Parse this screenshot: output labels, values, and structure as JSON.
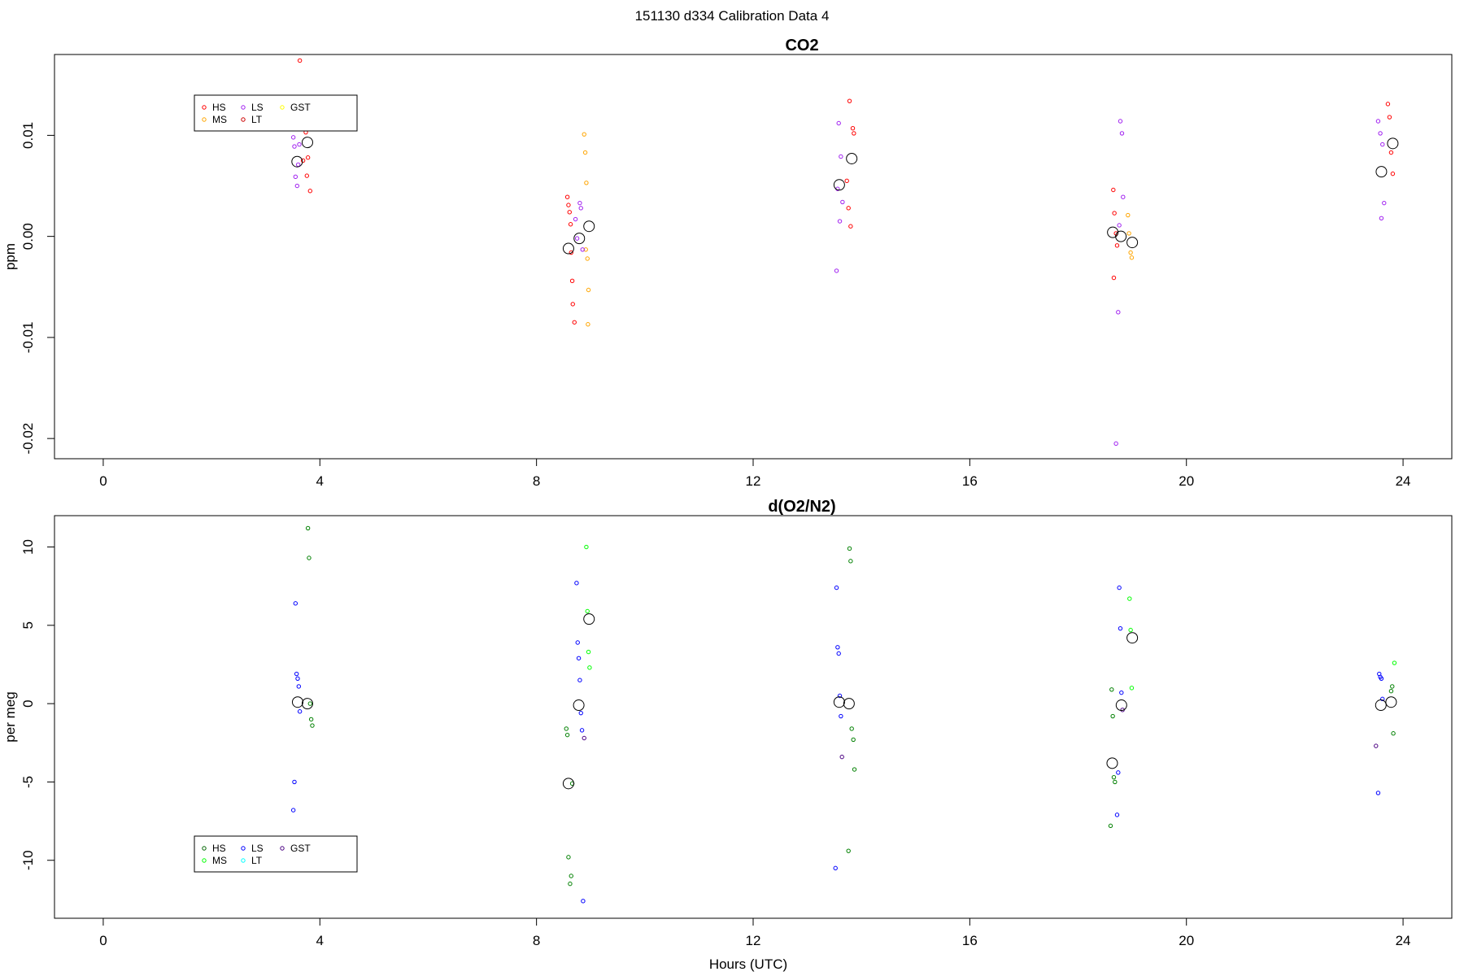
{
  "page": {
    "title": "151130   d334   Calibration Data 4"
  },
  "chart_data": [
    {
      "type": "scatter",
      "title": "CO2",
      "xlabel": "",
      "ylabel": "ppm",
      "xlim": [
        -0.9,
        24.9
      ],
      "ylim": [
        -0.022,
        0.018
      ],
      "xticks": [
        0,
        4,
        8,
        12,
        16,
        20,
        24
      ],
      "yticks": [
        -0.02,
        -0.01,
        0.0,
        0.01
      ],
      "ytick_labels": [
        "-0.02",
        "-0.01",
        "0.00",
        "0.01"
      ],
      "legend": {
        "position": "top-left",
        "entries": [
          {
            "label": "HS",
            "color": "#ff0000"
          },
          {
            "label": "MS",
            "color": "#ffa500"
          },
          {
            "label": "LS",
            "color": "#a020f0"
          },
          {
            "label": "LT",
            "color": "#cc0000"
          },
          {
            "label": "GST",
            "color": "#ffff00"
          }
        ]
      },
      "series": [
        {
          "name": "HS",
          "color": "#ff0000",
          "x": [
            3.63,
            3.74,
            3.78,
            3.82,
            3.69,
            3.76,
            8.57,
            8.59,
            8.61,
            8.63,
            8.64,
            8.66,
            8.67,
            8.7,
            13.78,
            13.84,
            13.86,
            13.73,
            13.76,
            13.8,
            18.65,
            18.67,
            18.7,
            18.66,
            18.72,
            23.72,
            23.75,
            23.78,
            23.81
          ],
          "y": [
            0.0174,
            0.0103,
            0.0078,
            0.0045,
            0.0075,
            0.006,
            0.0039,
            0.0031,
            0.0024,
            0.0012,
            -0.0016,
            -0.0044,
            -0.0067,
            -0.0085,
            0.0134,
            0.0107,
            0.0102,
            0.0055,
            0.0028,
            0.001,
            0.0046,
            0.0023,
            0.0003,
            -0.0041,
            -0.0009,
            0.0131,
            0.0118,
            0.0083,
            0.0062
          ]
        },
        {
          "name": "MS",
          "color": "#ffa500",
          "x": [
            8.88,
            8.9,
            8.92,
            8.91,
            8.94,
            8.96,
            8.95,
            18.92,
            18.94,
            18.97,
            18.99
          ],
          "y": [
            0.0101,
            0.0083,
            0.0053,
            -0.0013,
            -0.0022,
            -0.0053,
            -0.0087,
            0.0021,
            0.0003,
            -0.0016,
            -0.0021
          ]
        },
        {
          "name": "LS",
          "color": "#a020f0",
          "x": [
            3.51,
            3.53,
            3.55,
            3.58,
            3.6,
            3.62,
            8.8,
            8.82,
            8.72,
            8.75,
            8.85,
            13.54,
            13.58,
            13.62,
            13.65,
            13.56,
            13.6,
            18.78,
            18.81,
            18.83,
            18.76,
            18.74,
            18.7,
            23.54,
            23.58,
            23.62,
            23.65,
            23.6
          ],
          "y": [
            0.0098,
            0.0089,
            0.0059,
            0.005,
            0.0071,
            0.0091,
            0.0033,
            0.0028,
            0.0017,
            -0.0002,
            -0.0013,
            -0.0034,
            0.0112,
            0.0079,
            0.0034,
            0.0047,
            0.0015,
            0.0114,
            0.0102,
            0.0039,
            0.0011,
            -0.0075,
            -0.0205,
            0.0114,
            0.0102,
            0.0091,
            0.0033,
            0.0018
          ]
        }
      ],
      "means": {
        "x": [
          3.58,
          3.77,
          8.59,
          8.79,
          8.97,
          13.59,
          13.82,
          18.64,
          18.79,
          19.0,
          23.6,
          23.81
        ],
        "y": [
          0.0074,
          0.0093,
          -0.0012,
          -0.0002,
          0.001,
          0.0051,
          0.0077,
          0.0004,
          0.0,
          -0.0006,
          0.0064,
          0.0092
        ]
      }
    },
    {
      "type": "scatter",
      "title": "d(O2/N2)",
      "xlabel": "Hours (UTC)",
      "ylabel": "per meg",
      "xlim": [
        -0.9,
        24.9
      ],
      "ylim": [
        -13.7,
        12.0
      ],
      "xticks": [
        0,
        4,
        8,
        12,
        16,
        20,
        24
      ],
      "yticks": [
        -10,
        -5,
        0,
        5,
        10
      ],
      "ytick_labels": [
        "-10",
        "-5",
        "0",
        "5",
        "10"
      ],
      "legend": {
        "position": "bottom-left",
        "entries": [
          {
            "label": "HS",
            "color": "#006400"
          },
          {
            "label": "MS",
            "color": "#00ff00"
          },
          {
            "label": "LS",
            "color": "#0000ff"
          },
          {
            "label": "LT",
            "color": "#00ffff"
          },
          {
            "label": "GST",
            "color": "#4b0082"
          }
        ]
      },
      "series": [
        {
          "name": "HS",
          "color": "#008000",
          "x": [
            3.78,
            3.8,
            3.82,
            3.84,
            3.86,
            8.55,
            8.57,
            8.59,
            8.62,
            8.64,
            8.66,
            13.78,
            13.8,
            13.82,
            13.85,
            13.87,
            13.76,
            18.62,
            18.64,
            18.66,
            18.68,
            18.6,
            23.78,
            23.8,
            23.82
          ],
          "y": [
            11.2,
            9.3,
            0.0,
            -1.0,
            -1.4,
            -1.6,
            -2.0,
            -9.8,
            -11.5,
            -11.0,
            -5.1,
            9.9,
            9.1,
            -1.6,
            -2.3,
            -4.2,
            -9.4,
            0.9,
            -0.8,
            -4.7,
            -5.0,
            -7.8,
            0.8,
            1.1,
            -1.9
          ]
        },
        {
          "name": "MS",
          "color": "#00ff00",
          "x": [
            8.92,
            8.94,
            8.96,
            8.98,
            18.95,
            18.97,
            18.99,
            23.84
          ],
          "y": [
            10.0,
            5.9,
            3.3,
            2.3,
            6.7,
            4.7,
            1.0,
            2.6
          ]
        },
        {
          "name": "LS",
          "color": "#0000ff",
          "x": [
            3.55,
            3.57,
            3.59,
            3.61,
            3.63,
            3.53,
            3.51,
            8.74,
            8.76,
            8.78,
            8.8,
            8.82,
            8.84,
            8.86,
            13.54,
            13.56,
            13.58,
            13.6,
            13.62,
            13.52,
            18.76,
            18.78,
            18.8,
            18.74,
            18.72,
            23.56,
            23.58,
            23.6,
            23.62,
            23.54
          ],
          "y": [
            6.4,
            1.9,
            1.6,
            1.1,
            -0.5,
            -5.0,
            -6.8,
            7.7,
            3.9,
            2.9,
            1.5,
            -0.6,
            -1.7,
            -12.6,
            7.4,
            3.6,
            3.2,
            0.5,
            -0.8,
            -10.5,
            7.4,
            4.8,
            0.7,
            -4.4,
            -7.1,
            1.9,
            1.7,
            1.6,
            0.3,
            -5.7
          ]
        },
        {
          "name": "GST",
          "color": "#4b0082",
          "x": [
            8.88,
            13.64,
            18.82,
            23.5
          ],
          "y": [
            -2.2,
            -3.4,
            -0.4,
            -2.7
          ]
        }
      ],
      "means": {
        "x": [
          3.59,
          3.77,
          8.59,
          8.78,
          8.97,
          13.59,
          13.77,
          18.63,
          18.8,
          19.0,
          23.59,
          23.78
        ],
        "y": [
          0.1,
          0.0,
          -5.1,
          -0.1,
          5.4,
          0.1,
          0.0,
          -3.8,
          -0.1,
          4.2,
          -0.1,
          0.1
        ]
      }
    }
  ]
}
